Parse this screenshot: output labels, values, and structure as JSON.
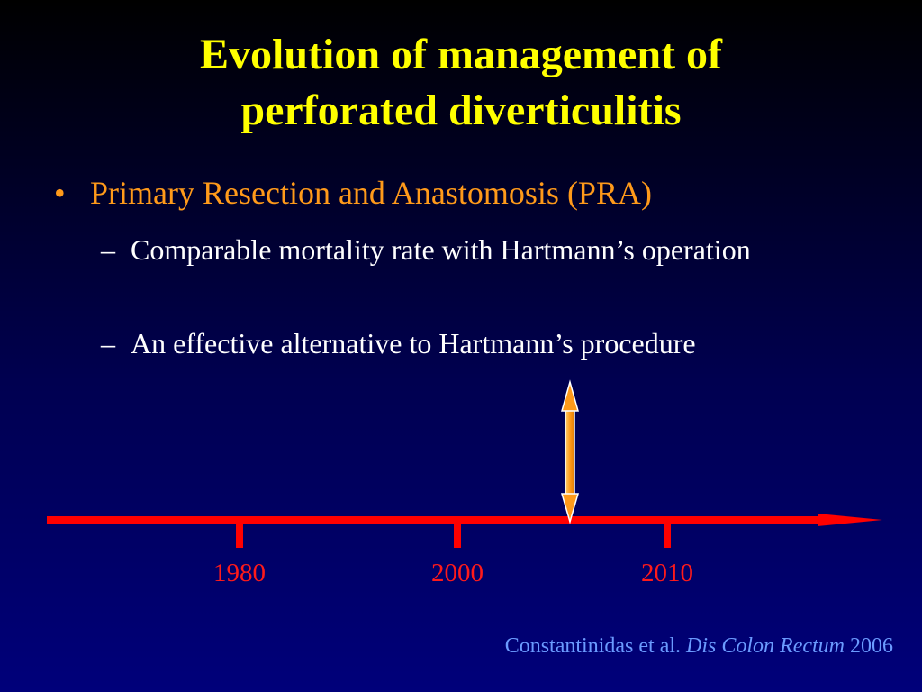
{
  "slide": {
    "title_line1": "Evolution of management of",
    "title_line2": "perforated diverticulitis",
    "bullet": {
      "marker": "•",
      "text": "Primary Resection and Anastomosis (PRA)"
    },
    "sub_bullets": [
      {
        "marker": "–",
        "text": "Comparable mortality rate with Hartmann’s operation"
      },
      {
        "marker": "–",
        "text": "An effective alternative to Hartmann’s procedure"
      }
    ],
    "timeline": {
      "years": [
        "1980",
        "2000",
        "2010"
      ],
      "line_color": "#ff0000",
      "marker_arrow_color": "#ffa020",
      "year_color": "#ff1a1a"
    },
    "citation": {
      "authors": "Constantinidas et al.",
      "journal": "Dis Colon Rectum",
      "year": "2006"
    },
    "colors": {
      "title": "#ffff00",
      "bullet": "#ff9a1a",
      "sub_bullet": "#ffffff",
      "citation": "#6b9bff"
    }
  }
}
